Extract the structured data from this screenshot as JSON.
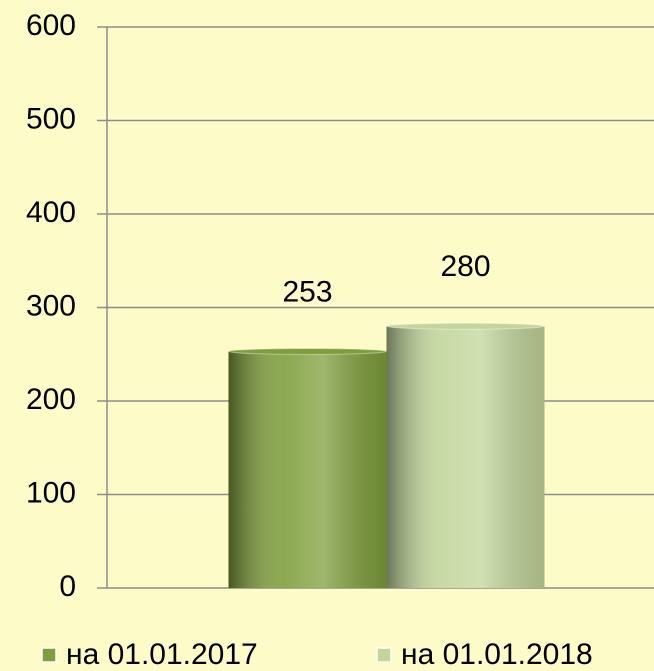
{
  "chart_data": {
    "type": "bar",
    "categories": [
      null
    ],
    "series": [
      {
        "name": "на 01.01.2017",
        "color": "#7f9f3c",
        "values": [
          253
        ]
      },
      {
        "name": "на 01.01.2018",
        "color": "#c2d69b",
        "values": [
          280
        ]
      }
    ],
    "ylim": [
      0,
      600
    ],
    "yticks": [
      0,
      100,
      200,
      300,
      400,
      500,
      600
    ],
    "grid": true,
    "legend": "bottom"
  }
}
